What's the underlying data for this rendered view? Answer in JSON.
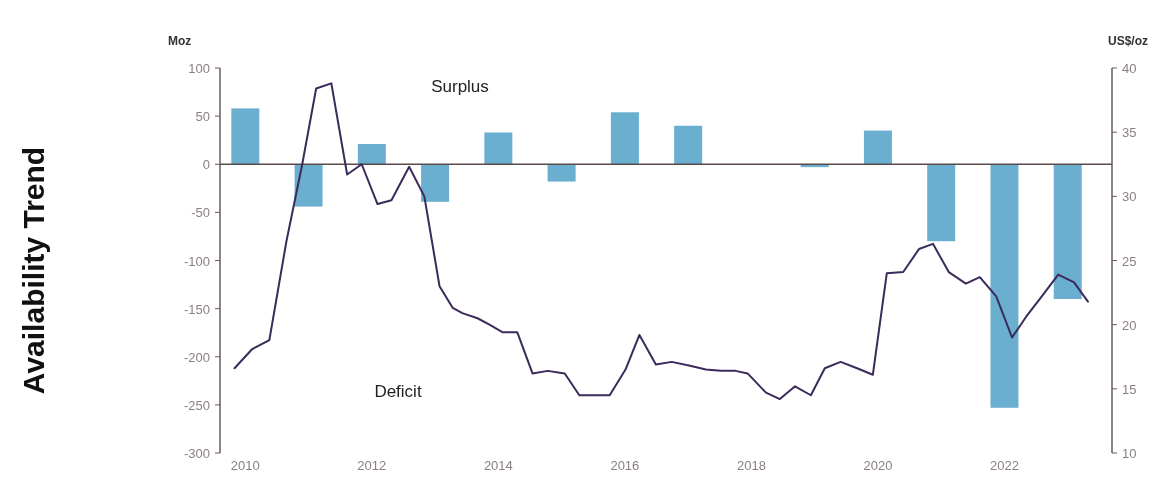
{
  "chart_data": {
    "type": "bar",
    "title": "Availability Trend",
    "ylabel": "Moz",
    "y2label": "US$/oz",
    "annotations": [
      "Surplus",
      "Deficit"
    ],
    "xlim": [
      2009.6,
      2023.7
    ],
    "xticks": [
      2010,
      2012,
      2014,
      2016,
      2018,
      2020,
      2022
    ],
    "ylim": [
      -300,
      100
    ],
    "yticks": [
      -300,
      -250,
      -200,
      -150,
      -100,
      -50,
      0,
      50,
      100
    ],
    "y2lim": [
      10,
      40
    ],
    "y2ticks": [
      10,
      15,
      20,
      25,
      30,
      35,
      40
    ],
    "grid": false,
    "ref_lines": [
      {
        "axis": "y",
        "value": 0,
        "color": "#5a4a4a"
      }
    ],
    "series": [
      {
        "color": "#6aaed0",
        "x": [
          2010,
          2011,
          2012,
          2013,
          2014,
          2015,
          2016,
          2017,
          2019,
          2020,
          2021,
          2022,
          2023
        ],
        "values": [
          58,
          -44,
          21,
          -39,
          33,
          -18,
          54,
          40,
          -3,
          35,
          -80,
          -253,
          -140
        ]
      },
      {
        "type": "line",
        "axis": "y2",
        "color": "#3b2a5a",
        "line_style": "solid",
        "marker": "none",
        "x": [
          2009.83,
          2010.11,
          2010.38,
          2010.65,
          2010.9,
          2011.12,
          2011.36,
          2011.61,
          2011.84,
          2012.09,
          2012.31,
          2012.59,
          2012.83,
          2013.07,
          2013.28,
          2013.43,
          2013.67,
          2013.86,
          2014.07,
          2014.3,
          2014.54,
          2014.78,
          2015.05,
          2015.28,
          2015.52,
          2015.76,
          2016.01,
          2016.23,
          2016.49,
          2016.74,
          2017.03,
          2017.28,
          2017.52,
          2017.75,
          2017.94,
          2018.23,
          2018.45,
          2018.69,
          2018.94,
          2019.16,
          2019.41,
          2019.67,
          2019.92,
          2020.14,
          2020.4,
          2020.65,
          2020.87,
          2021.12,
          2021.39,
          2021.61,
          2021.87,
          2022.12,
          2022.34,
          2022.59,
          2022.85,
          2023.1,
          2023.32
        ],
        "values": [
          16.6,
          18.1,
          18.8,
          26.5,
          32.5,
          38.4,
          38.8,
          31.7,
          32.5,
          29.4,
          29.7,
          32.3,
          30.0,
          23.0,
          21.3,
          20.9,
          20.5,
          20.0,
          19.4,
          19.4,
          16.2,
          16.4,
          16.2,
          14.5,
          14.5,
          14.5,
          16.5,
          19.2,
          16.9,
          17.1,
          16.8,
          16.5,
          16.4,
          16.4,
          16.2,
          14.7,
          14.2,
          15.2,
          14.5,
          16.6,
          17.1,
          16.6,
          16.1,
          24.0,
          24.1,
          25.9,
          26.3,
          24.1,
          23.2,
          23.7,
          22.2,
          19.0,
          20.6,
          22.2,
          23.9,
          23.3,
          21.8
        ]
      }
    ]
  }
}
